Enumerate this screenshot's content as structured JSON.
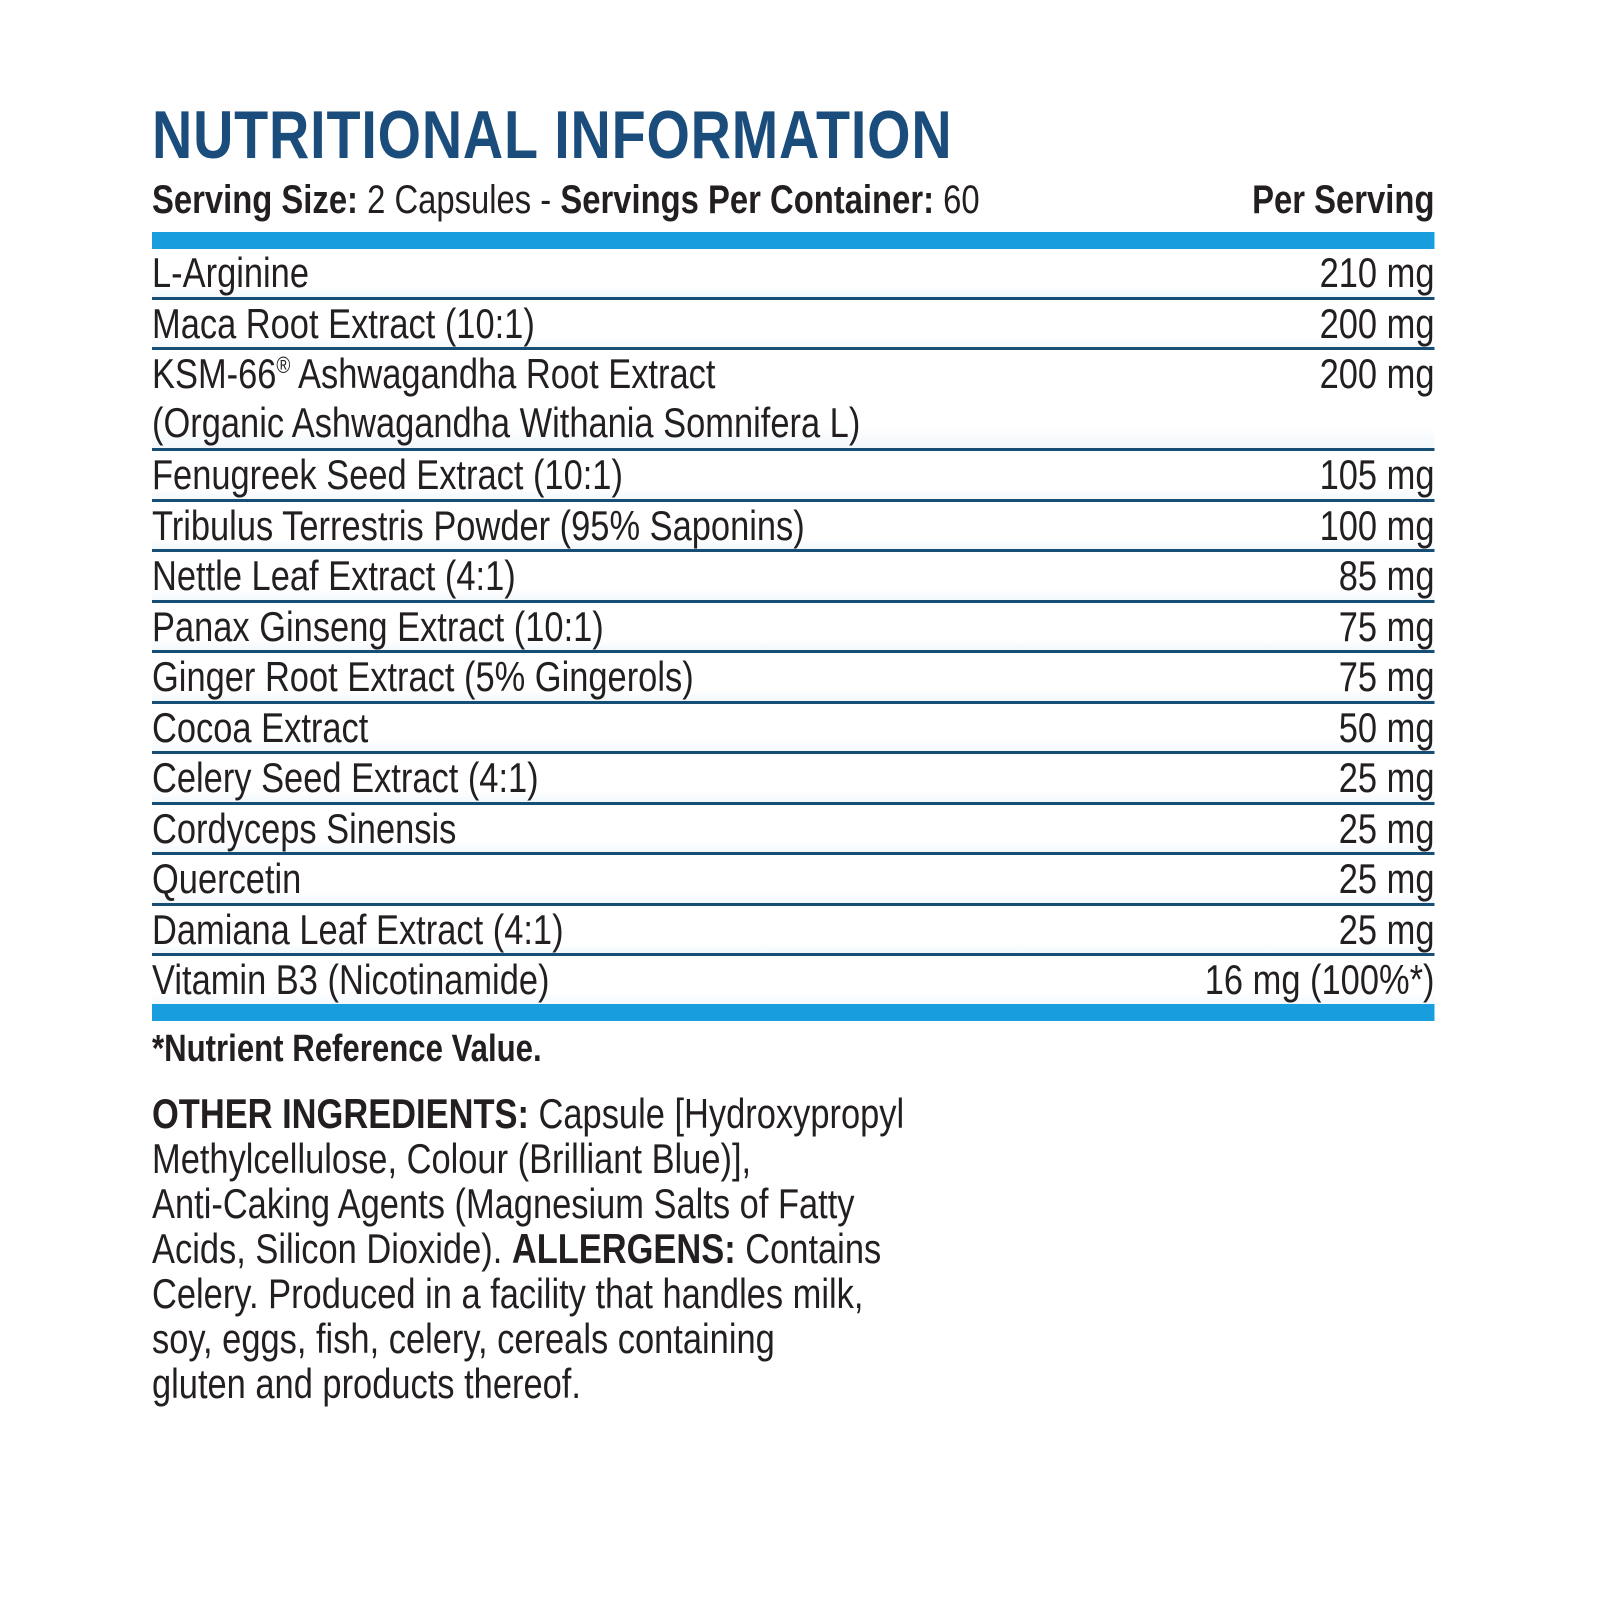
{
  "title": "NUTRITIONAL INFORMATION",
  "colors": {
    "title": "#1b4d7c",
    "bar": "#189ddf",
    "divider": "#174e75",
    "text": "#231f20"
  },
  "serving_line": {
    "segments": [
      {
        "text": "Serving Size:",
        "bold": true
      },
      {
        "text": " 2 Capsules - ",
        "bold": false
      },
      {
        "text": "Servings Per Container:",
        "bold": true
      },
      {
        "text": " 60",
        "bold": false
      }
    ],
    "right_label": "Per Serving"
  },
  "table": {
    "rows": [
      {
        "name": "L-Arginine",
        "amount": "210 mg"
      },
      {
        "name": "Maca Root Extract (10:1)",
        "amount": "200 mg"
      },
      {
        "name": "KSM-66® Ashwagandha Root Extract",
        "sub": "(Organic Ashwagandha Withania Somnifera L)",
        "amount": "200 mg"
      },
      {
        "name": "Fenugreek Seed Extract (10:1)",
        "amount": "105 mg"
      },
      {
        "name": "Tribulus Terrestris Powder (95% Saponins)",
        "amount": "100 mg"
      },
      {
        "name": "Nettle Leaf Extract (4:1)",
        "amount": "85 mg"
      },
      {
        "name": "Panax Ginseng Extract (10:1)",
        "amount": "75 mg"
      },
      {
        "name": "Ginger Root Extract (5% Gingerols)",
        "amount": "75 mg"
      },
      {
        "name": "Cocoa Extract",
        "amount": "50 mg"
      },
      {
        "name": "Celery Seed Extract (4:1)",
        "amount": "25 mg"
      },
      {
        "name": "Cordyceps Sinensis",
        "amount": "25 mg"
      },
      {
        "name": "Quercetin",
        "amount": "25 mg"
      },
      {
        "name": "Damiana Leaf Extract (4:1)",
        "amount": "25 mg"
      },
      {
        "name": "Vitamin B3 (Nicotinamide)",
        "amount": "16 mg (100%*)"
      }
    ]
  },
  "footnote": "*Nutrient Reference Value.",
  "other_ingredients": {
    "lines": [
      [
        {
          "text": "OTHER INGREDIENTS:",
          "bold": true
        },
        {
          "text": " Capsule [Hydroxypropyl",
          "bold": false
        }
      ],
      [
        {
          "text": "Methylcellulose, Colour (Brilliant Blue)],",
          "bold": false
        }
      ],
      [
        {
          "text": "Anti-Caking Agents (Magnesium Salts of Fatty",
          "bold": false
        }
      ],
      [
        {
          "text": "Acids, Silicon Dioxide). ",
          "bold": false
        },
        {
          "text": "ALLERGENS:",
          "bold": true
        },
        {
          "text": " Contains",
          "bold": false
        }
      ],
      [
        {
          "text": "Celery. Produced in a facility that handles milk,",
          "bold": false
        }
      ],
      [
        {
          "text": "soy, eggs, fish, celery, cereals containing",
          "bold": false
        }
      ],
      [
        {
          "text": "gluten and products thereof.",
          "bold": false
        }
      ]
    ]
  }
}
